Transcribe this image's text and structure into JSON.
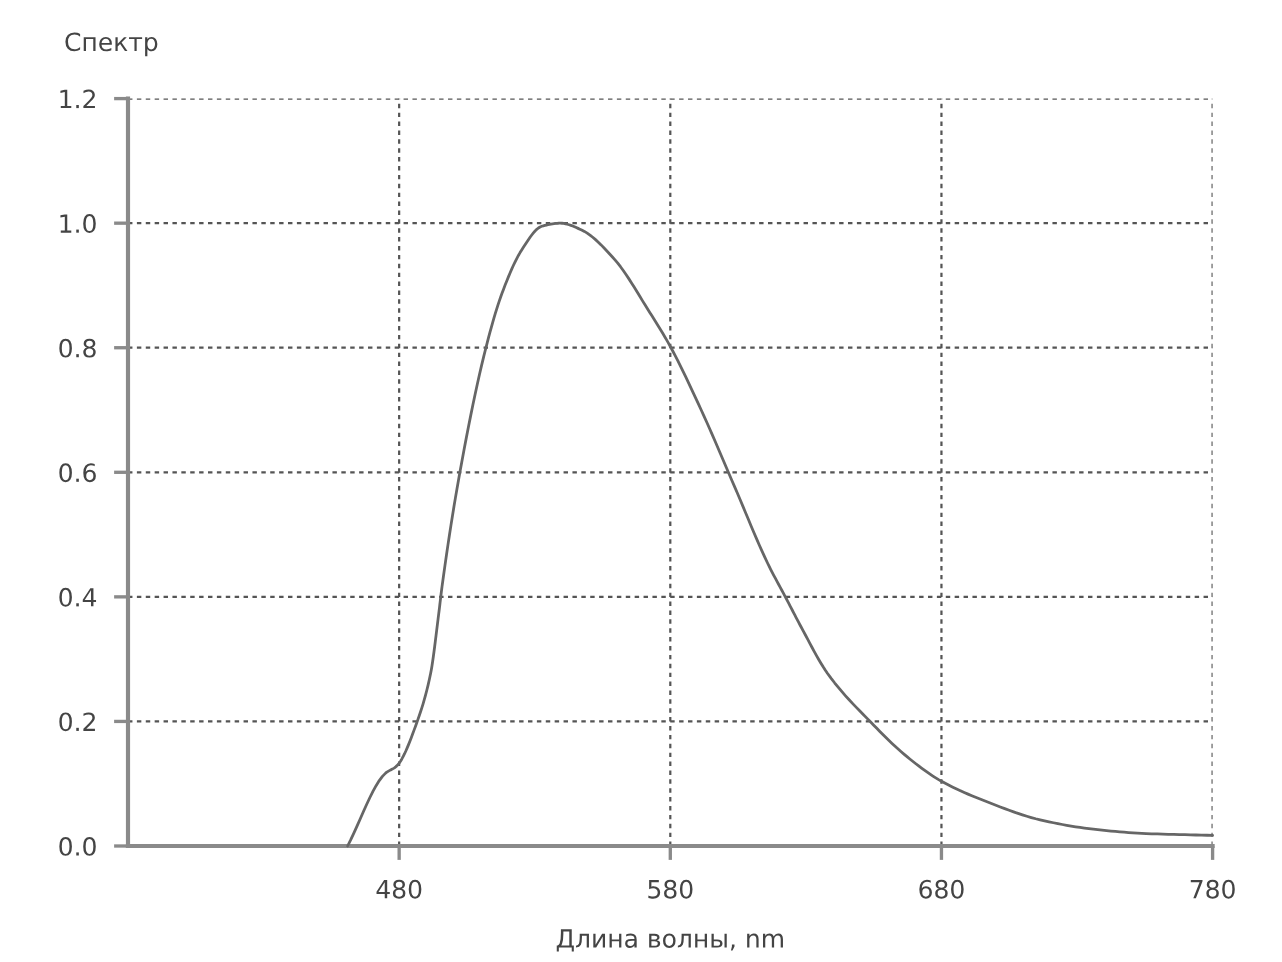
{
  "chart_data": {
    "type": "line",
    "ylabel": "Спектр",
    "xlabel": "Длина волны, nm",
    "series": [
      {
        "color": "#666666",
        "x": [
          461,
          475,
          478.7,
          480,
          486,
          491.6,
          494.6,
          495.8,
          502.4,
          512,
          517.9,
          525.2,
          532.6,
          539.4,
          547.3,
          559.6,
          571.8,
          580,
          591.4,
          603.7,
          615.9,
          622.8,
          628.2,
          638,
          653.9,
          667.4,
          680,
          696.8,
          716.4,
          736,
          755.5,
          780
        ],
        "values": [
          0.0,
          0.117,
          0.127,
          0.133,
          0.192,
          0.277,
          0.373,
          0.416,
          0.6,
          0.8,
          0.887,
          0.957,
          0.995,
          1.0,
          0.989,
          0.941,
          0.861,
          0.802,
          0.7,
          0.577,
          0.454,
          0.397,
          0.352,
          0.277,
          0.199,
          0.143,
          0.104,
          0.071,
          0.042,
          0.027,
          0.02,
          0.017
        ]
      }
    ],
    "xlim": [
      380,
      780
    ],
    "xticks": [
      480,
      580,
      680,
      780
    ],
    "ylim": [
      0,
      1.2
    ],
    "yticks": [
      {
        "value": 0,
        "label": "0.0"
      },
      0.2,
      0.4,
      0.6,
      0.8,
      {
        "value": 1,
        "label": "1.0"
      },
      1.2
    ],
    "grid": true,
    "marker": "none",
    "line_style": "solid"
  }
}
